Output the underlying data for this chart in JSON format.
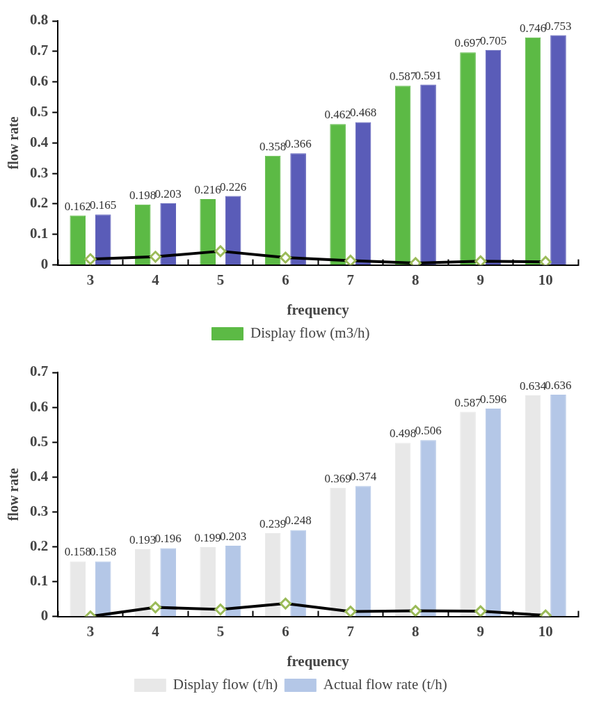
{
  "chart_data": [
    {
      "type": "bar",
      "xlabel": "frequency",
      "ylabel": "flow rate",
      "categories": [
        "3",
        "4",
        "5",
        "6",
        "7",
        "8",
        "9",
        "10"
      ],
      "ylim": [
        0,
        0.8
      ],
      "yticks": [
        0,
        0.1,
        0.2,
        0.3,
        0.4,
        0.5,
        0.6,
        0.7,
        0.8
      ],
      "grid": false,
      "legend": "bottom",
      "marker": "diamond",
      "series": [
        {
          "name": "Display flow (m3/h)",
          "color": "#5cba45",
          "values": [
            0.162,
            0.198,
            0.216,
            0.358,
            0.462,
            0.587,
            0.697,
            0.746
          ],
          "value_labels": [
            "0.162",
            "0.198",
            "0.216",
            "0.358",
            "0.462",
            "0.587",
            "0.697",
            "0.746"
          ]
        },
        {
          "color": "#5a5cb8",
          "values": [
            0.165,
            0.203,
            0.226,
            0.366,
            0.468,
            0.591,
            0.705,
            0.753
          ],
          "value_labels": [
            "0.165",
            "0.203",
            "0.226",
            "0.366",
            "0.468",
            "0.591",
            "0.705",
            "0.753"
          ]
        },
        {
          "type": "line",
          "color": "#000000",
          "values": [
            0.019,
            0.027,
            0.045,
            0.024,
            0.014,
            0.006,
            0.012,
            0.01
          ]
        }
      ]
    },
    {
      "type": "bar",
      "xlabel": "frequency",
      "ylabel": "flow rate",
      "categories": [
        "3",
        "4",
        "5",
        "6",
        "7",
        "8",
        "9",
        "10"
      ],
      "ylim": [
        0,
        0.7
      ],
      "yticks": [
        0,
        0.1,
        0.2,
        0.3,
        0.4,
        0.5,
        0.6,
        0.7
      ],
      "grid": false,
      "legend": "bottom",
      "marker": "diamond",
      "series": [
        {
          "name": "Display flow (t/h)",
          "color": "#e8e8e8",
          "values": [
            0.158,
            0.193,
            0.199,
            0.239,
            0.369,
            0.498,
            0.587,
            0.634
          ],
          "value_labels": [
            "0.158",
            "0.193",
            "0.199",
            "0.239",
            "0.369",
            "0.498",
            "0.587",
            "0.634"
          ]
        },
        {
          "name": "Actual flow rate (t/h)",
          "color": "#b4c7e7",
          "values": [
            0.158,
            0.196,
            0.203,
            0.248,
            0.374,
            0.506,
            0.596,
            0.636
          ],
          "value_labels": [
            "0.158",
            "0.196",
            "0.203",
            "0.248",
            "0.374",
            "0.506",
            "0.596",
            "0.636"
          ]
        },
        {
          "type": "line",
          "color": "#000000",
          "values": [
            0,
            0.026,
            0.02,
            0.037,
            0.014,
            0.016,
            0.015,
            0.003
          ]
        }
      ]
    }
  ]
}
